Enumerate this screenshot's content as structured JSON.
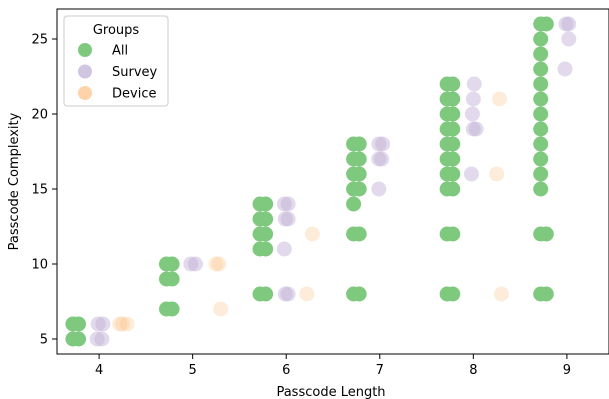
{
  "chart_data": {
    "type": "scatter",
    "xlabel": "Passcode Length",
    "ylabel": "Passcode Complexity",
    "xlim": [
      3.55,
      9.45
    ],
    "ylim": [
      4.0,
      27.0
    ],
    "x_ticks": [
      "4",
      "5",
      "6",
      "7",
      "8",
      "9"
    ],
    "y_ticks": [
      "5",
      "10",
      "15",
      "20",
      "25"
    ],
    "grid": false,
    "legend": {
      "title": "Groups",
      "placement": "top-left",
      "entries": [
        "All",
        "Survey",
        "Device"
      ]
    },
    "series": [
      {
        "name": "All",
        "color": "#7fc97f",
        "opacity": 1.0,
        "points": [
          [
            3.72,
            5
          ],
          [
            3.78,
            5
          ],
          [
            3.72,
            6
          ],
          [
            3.78,
            6
          ],
          [
            4.72,
            7
          ],
          [
            4.78,
            7
          ],
          [
            4.72,
            9
          ],
          [
            4.78,
            9
          ],
          [
            4.72,
            10
          ],
          [
            4.78,
            10
          ],
          [
            5.72,
            8
          ],
          [
            5.78,
            8
          ],
          [
            5.72,
            11
          ],
          [
            5.78,
            11
          ],
          [
            5.72,
            12
          ],
          [
            5.78,
            12
          ],
          [
            5.72,
            13
          ],
          [
            5.78,
            13
          ],
          [
            5.72,
            14
          ],
          [
            5.78,
            14
          ],
          [
            6.72,
            8
          ],
          [
            6.78,
            8
          ],
          [
            6.72,
            12
          ],
          [
            6.78,
            12
          ],
          [
            6.72,
            14
          ],
          [
            6.72,
            15
          ],
          [
            6.78,
            15
          ],
          [
            6.72,
            16
          ],
          [
            6.78,
            16
          ],
          [
            6.72,
            17
          ],
          [
            6.78,
            17
          ],
          [
            6.72,
            18
          ],
          [
            6.78,
            18
          ],
          [
            7.72,
            8
          ],
          [
            7.78,
            8
          ],
          [
            7.72,
            12
          ],
          [
            7.78,
            12
          ],
          [
            7.72,
            15
          ],
          [
            7.78,
            15
          ],
          [
            7.72,
            16
          ],
          [
            7.78,
            16
          ],
          [
            7.72,
            17
          ],
          [
            7.78,
            17
          ],
          [
            7.72,
            18
          ],
          [
            7.78,
            18
          ],
          [
            7.72,
            19
          ],
          [
            7.78,
            19
          ],
          [
            7.72,
            20
          ],
          [
            7.78,
            20
          ],
          [
            7.72,
            21
          ],
          [
            7.78,
            21
          ],
          [
            7.72,
            22
          ],
          [
            7.78,
            22
          ],
          [
            8.72,
            8
          ],
          [
            8.78,
            8
          ],
          [
            8.72,
            12
          ],
          [
            8.78,
            12
          ],
          [
            8.72,
            15
          ],
          [
            8.72,
            16
          ],
          [
            8.72,
            17
          ],
          [
            8.72,
            18
          ],
          [
            8.72,
            19
          ],
          [
            8.72,
            20
          ],
          [
            8.72,
            21
          ],
          [
            8.72,
            22
          ],
          [
            8.72,
            23
          ],
          [
            8.72,
            24
          ],
          [
            8.72,
            25
          ],
          [
            8.72,
            26
          ],
          [
            8.78,
            26
          ]
        ]
      },
      {
        "name": "Survey",
        "color": "#beaed4",
        "opacity": 0.45,
        "points": [
          [
            3.98,
            5
          ],
          [
            4.03,
            5
          ],
          [
            3.99,
            6
          ],
          [
            4.04,
            6
          ],
          [
            4.98,
            10
          ],
          [
            5.03,
            10
          ],
          [
            5.99,
            8
          ],
          [
            6.02,
            8
          ],
          [
            5.98,
            11
          ],
          [
            5.99,
            13
          ],
          [
            6.02,
            13
          ],
          [
            5.98,
            14
          ],
          [
            6.02,
            14
          ],
          [
            6.99,
            15
          ],
          [
            6.99,
            17
          ],
          [
            7.02,
            17
          ],
          [
            6.99,
            18
          ],
          [
            7.03,
            18
          ],
          [
            7.98,
            16
          ],
          [
            8.0,
            19
          ],
          [
            8.03,
            19
          ],
          [
            7.99,
            20
          ],
          [
            8.0,
            21
          ],
          [
            8.01,
            22
          ],
          [
            8.98,
            23
          ],
          [
            9.02,
            25
          ],
          [
            8.99,
            26
          ],
          [
            9.02,
            26
          ]
        ]
      },
      {
        "name": "Device",
        "color": "#fdc086",
        "opacity": 0.3,
        "points": [
          [
            4.22,
            6
          ],
          [
            4.25,
            6
          ],
          [
            4.3,
            6
          ],
          [
            5.25,
            10
          ],
          [
            5.28,
            10
          ],
          [
            5.3,
            7
          ],
          [
            6.22,
            8
          ],
          [
            6.28,
            12
          ],
          [
            8.25,
            16
          ],
          [
            8.28,
            21
          ],
          [
            8.3,
            8
          ]
        ]
      }
    ]
  }
}
